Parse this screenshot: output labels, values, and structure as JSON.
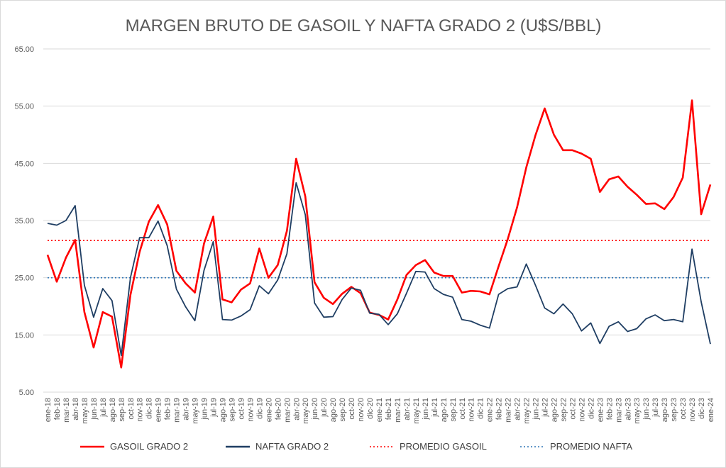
{
  "chart_data": {
    "type": "line",
    "title": "MARGEN BRUTO DE GASOIL Y NAFTA GRADO 2 (U$S/BBL)",
    "ylim": [
      5,
      65
    ],
    "yticks": [
      "5.00",
      "15.00",
      "25.00",
      "35.00",
      "45.00",
      "55.00",
      "65.00"
    ],
    "grid": true,
    "legend_position": "bottom",
    "categories": [
      "ene-18",
      "feb-18",
      "mar-18",
      "abr-18",
      "may-18",
      "jun-18",
      "jul-18",
      "ago-18",
      "sep-18",
      "oct-18",
      "nov-18",
      "dic-18",
      "ene-19",
      "feb-19",
      "mar-19",
      "abr-19",
      "may-19",
      "jun-19",
      "jul-19",
      "ago-19",
      "sep-19",
      "oct-19",
      "nov-19",
      "dic-19",
      "ene-20",
      "feb-20",
      "mar-20",
      "abr-20",
      "may-20",
      "jun-20",
      "jul-20",
      "ago-20",
      "sep-20",
      "oct-20",
      "nov-20",
      "dic-20",
      "ene-21",
      "feb-21",
      "mar-21",
      "abr-21",
      "may-21",
      "jun-21",
      "jul-21",
      "ago-21",
      "sep-21",
      "oct-21",
      "nov-21",
      "dic-21",
      "ene-22",
      "feb-22",
      "mar-22",
      "abr-22",
      "may-22",
      "jun-22",
      "jul-22",
      "ago-22",
      "sep-22",
      "oct-22",
      "nov-22",
      "dic-22",
      "ene-23",
      "feb-23",
      "mar-23",
      "abr-23",
      "may-23",
      "jun-23",
      "jul-23",
      "ago-23",
      "sep-23",
      "oct-23",
      "nov-23",
      "dic-23",
      "ene-24"
    ],
    "series": [
      {
        "name": "GASOIL GRADO 2",
        "color": "#ff0000",
        "style": "solid",
        "values": [
          29.0,
          24.3,
          28.5,
          31.6,
          19.0,
          12.8,
          19.0,
          18.2,
          9.3,
          22.0,
          29.5,
          34.8,
          37.7,
          34.3,
          26.2,
          24.0,
          22.4,
          31.0,
          35.7,
          21.2,
          20.7,
          22.9,
          24.0,
          30.1,
          25.0,
          27.2,
          33.2,
          45.8,
          39.2,
          24.2,
          21.5,
          20.4,
          22.2,
          23.4,
          22.3,
          18.9,
          18.5,
          17.7,
          21.2,
          25.5,
          27.2,
          28.1,
          25.9,
          25.3,
          25.3,
          22.4,
          22.7,
          22.6,
          22.1,
          27.0,
          31.8,
          37.3,
          44.3,
          49.9,
          54.6,
          50.0,
          47.3,
          47.3,
          46.7,
          45.8,
          40.0,
          42.2,
          42.7,
          40.9,
          39.5,
          37.9,
          38.0,
          37.0,
          39.1,
          42.5,
          56.0,
          36.1,
          41.3
        ]
      },
      {
        "name": "NAFTA GRADO 2",
        "color": "#1f3e63",
        "style": "solid",
        "values": [
          34.5,
          34.2,
          35.0,
          37.6,
          23.7,
          18.1,
          23.1,
          21.0,
          11.4,
          25.0,
          32.0,
          32.0,
          34.9,
          30.6,
          23.0,
          19.9,
          17.5,
          26.3,
          31.3,
          17.7,
          17.6,
          18.3,
          19.4,
          23.6,
          22.2,
          24.6,
          29.2,
          41.6,
          36.0,
          20.6,
          18.1,
          18.2,
          21.2,
          23.2,
          22.8,
          18.8,
          18.6,
          16.8,
          18.7,
          22.3,
          26.1,
          26.0,
          23.1,
          22.1,
          21.6,
          17.7,
          17.4,
          16.7,
          16.2,
          22.1,
          23.1,
          23.4,
          27.4,
          23.7,
          19.7,
          18.7,
          20.4,
          18.7,
          15.7,
          17.1,
          13.5,
          16.5,
          17.3,
          15.6,
          16.1,
          17.8,
          18.5,
          17.5,
          17.7,
          17.3,
          30.0,
          20.8,
          13.4
        ]
      },
      {
        "name": "PROMEDIO GASOIL",
        "color": "#ff0000",
        "style": "dotted",
        "constant": 31.5
      },
      {
        "name": "PROMEDIO NAFTA",
        "color": "#2e75b6",
        "style": "dotted",
        "constant": 25.0
      }
    ]
  }
}
